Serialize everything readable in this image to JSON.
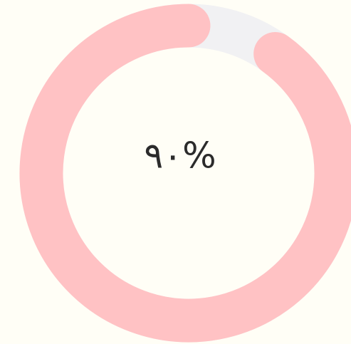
{
  "chart_data": {
    "type": "progress-ring",
    "values": [
      90
    ],
    "value_labels": [
      "٩٠%"
    ],
    "color": "#ffc2c4",
    "track_color": "#f1f1f3"
  }
}
